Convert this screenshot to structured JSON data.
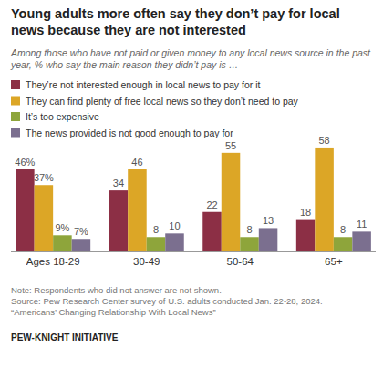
{
  "chart_data": {
    "type": "bar",
    "title": "Young adults more often say they don’t pay for local news because they are not interested",
    "subtitle": "Among those who have not paid or given money to any local news source in the past year, % who say the main reason they didn’t pay is …",
    "categories": [
      "Ages 18-29",
      "30-49",
      "50-64",
      "65+"
    ],
    "series": [
      {
        "name": "They’re not interested enough in local news to pay for it",
        "color": "#8c2f45",
        "values": [
          46,
          34,
          22,
          18
        ],
        "value_labels": [
          "46%",
          "34",
          "22",
          "18"
        ]
      },
      {
        "name": "They can find plenty of free local news so they don’t need to pay",
        "color": "#dca626",
        "values": [
          37,
          46,
          55,
          58
        ],
        "value_labels": [
          "37%",
          "46",
          "55",
          "58"
        ]
      },
      {
        "name": "It’s too expensive",
        "color": "#8ea53b",
        "values": [
          9,
          8,
          8,
          8
        ],
        "value_labels": [
          "9%",
          "8",
          "8",
          "8"
        ]
      },
      {
        "name": "The news provided is not good enough to pay for",
        "color": "#7b6f8f",
        "values": [
          7,
          10,
          13,
          11
        ],
        "value_labels": [
          "7%",
          "10",
          "13",
          "11"
        ]
      }
    ],
    "ylim": [
      0,
      60
    ],
    "grid": false,
    "legend": "top-left",
    "data_labels": true,
    "tick_labels": "x",
    "annotations": [
      "Note: Respondents who did not answer are not shown.",
      "Source: Pew Research Center survey of U.S. adults conducted Jan. 22-28, 2024.",
      "“Americans’ Changing Relationship With Local News”",
      "PEW-KNIGHT INITIATIVE"
    ]
  }
}
